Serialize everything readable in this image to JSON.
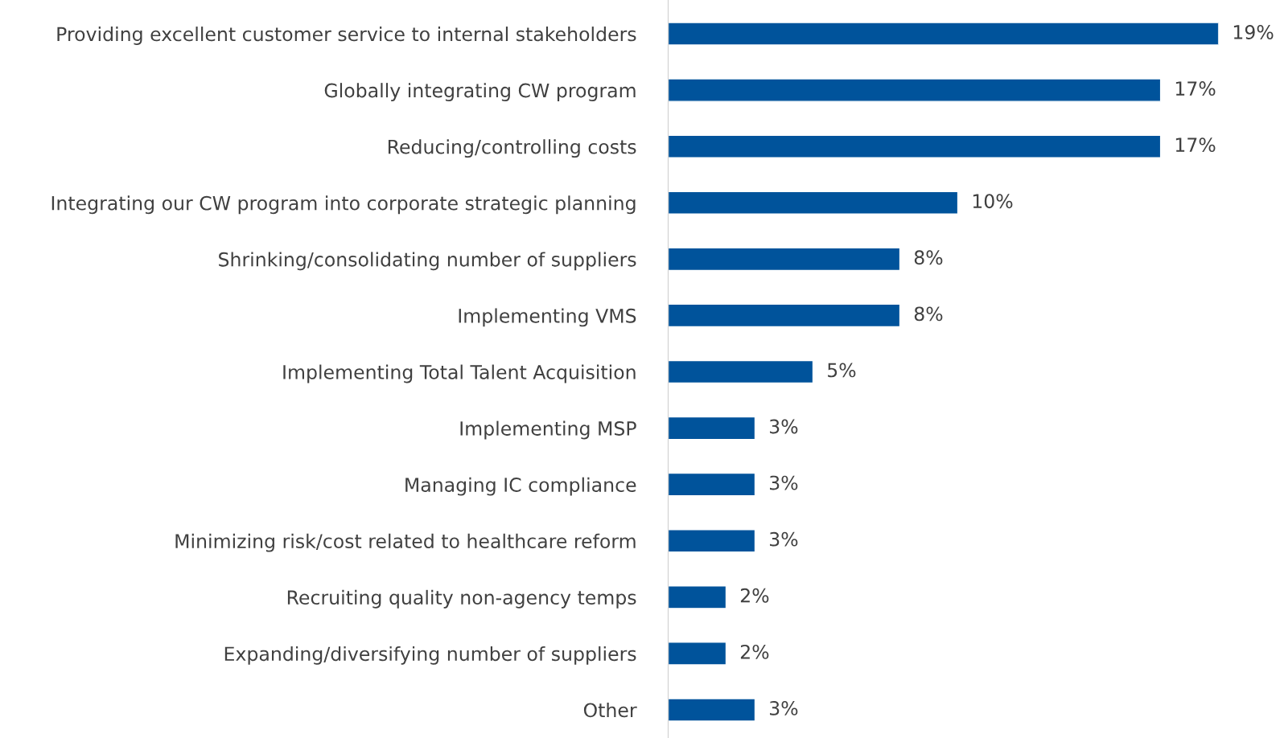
{
  "chart_data": {
    "type": "bar",
    "orientation": "horizontal",
    "color": "#00539b",
    "categories": [
      "Providing excellent customer service to internal stakeholders",
      "Globally integrating CW program",
      "Reducing/controlling costs",
      "Integrating our CW program into corporate strategic planning",
      "Shrinking/consolidating number of suppliers",
      "Implementing VMS",
      "Implementing Total Talent Acquisition",
      "Implementing MSP",
      "Managing IC compliance",
      "Minimizing risk/cost related to healthcare reform",
      "Recruiting quality non-agency temps",
      "Expanding/diversifying number of suppliers",
      "Other"
    ],
    "values": [
      19,
      17,
      17,
      10,
      8,
      8,
      5,
      3,
      3,
      3,
      2,
      2,
      3
    ],
    "value_labels": [
      "19%",
      "17%",
      "17%",
      "10%",
      "8%",
      "8%",
      "5%",
      "3%",
      "3%",
      "3%",
      "2%",
      "2%",
      "3%"
    ],
    "grid": false,
    "legend": false
  }
}
